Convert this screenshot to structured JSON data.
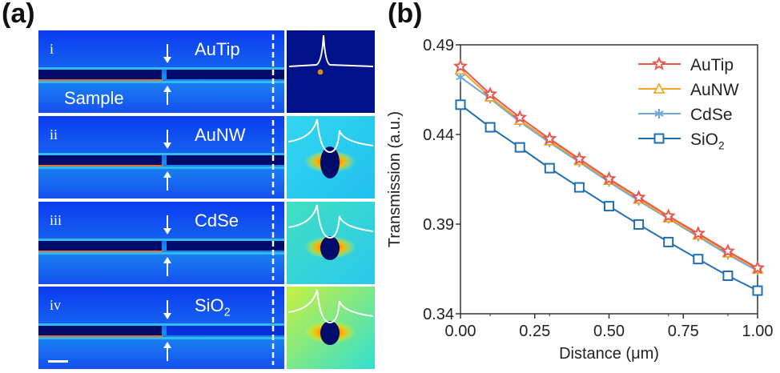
{
  "panel_a": {
    "label": "(a)",
    "sample_label": "Sample",
    "rows": [
      {
        "numeral": "i",
        "material": "AuTip",
        "sub": ""
      },
      {
        "numeral": "ii",
        "material": "AuNW",
        "sub": ""
      },
      {
        "numeral": "iii",
        "material": "CdSe",
        "sub": ""
      },
      {
        "numeral": "iv",
        "material": "SiO",
        "sub": "2"
      }
    ]
  },
  "panel_b": {
    "label": "(b)"
  },
  "chart_data": {
    "type": "line",
    "xlabel": "Distance (μm)",
    "ylabel": "Transmission (a.u.)",
    "xlim": [
      0,
      1.0
    ],
    "ylim": [
      0.34,
      0.49
    ],
    "xticks": [
      "0.00",
      "0.25",
      "0.50",
      "0.75",
      "1.00"
    ],
    "yticks": [
      "0.34",
      "0.39",
      "0.44",
      "0.49"
    ],
    "grid": false,
    "legend_placement": "top-right",
    "x": [
      0,
      0.1,
      0.2,
      0.3,
      0.4,
      0.5,
      0.6,
      0.7,
      0.8,
      0.9,
      1.0
    ],
    "series": [
      {
        "name": "AuTip",
        "sub": "",
        "color": "#e8584f",
        "marker": "star",
        "values": [
          0.478,
          0.4625,
          0.4495,
          0.4376,
          0.4264,
          0.4153,
          0.4049,
          0.3945,
          0.3848,
          0.3749,
          0.3655
        ]
      },
      {
        "name": "AuNW",
        "sub": "",
        "color": "#f5a623",
        "marker": "triangle",
        "values": [
          0.476,
          0.461,
          0.448,
          0.4365,
          0.4255,
          0.4145,
          0.404,
          0.3935,
          0.384,
          0.374,
          0.365
        ]
      },
      {
        "name": "CdSe",
        "sub": "",
        "color": "#6fa8dc",
        "marker": "asterisk",
        "values": [
          0.472,
          0.46,
          0.447,
          0.4355,
          0.4245,
          0.4135,
          0.403,
          0.393,
          0.383,
          0.373,
          0.364
        ]
      },
      {
        "name": "SiO",
        "sub": "2",
        "color": "#1f6fb4",
        "marker": "square",
        "values": [
          0.4566,
          0.444,
          0.4328,
          0.4212,
          0.4105,
          0.4,
          0.3898,
          0.38,
          0.3705,
          0.3612,
          0.3529
        ]
      }
    ]
  }
}
